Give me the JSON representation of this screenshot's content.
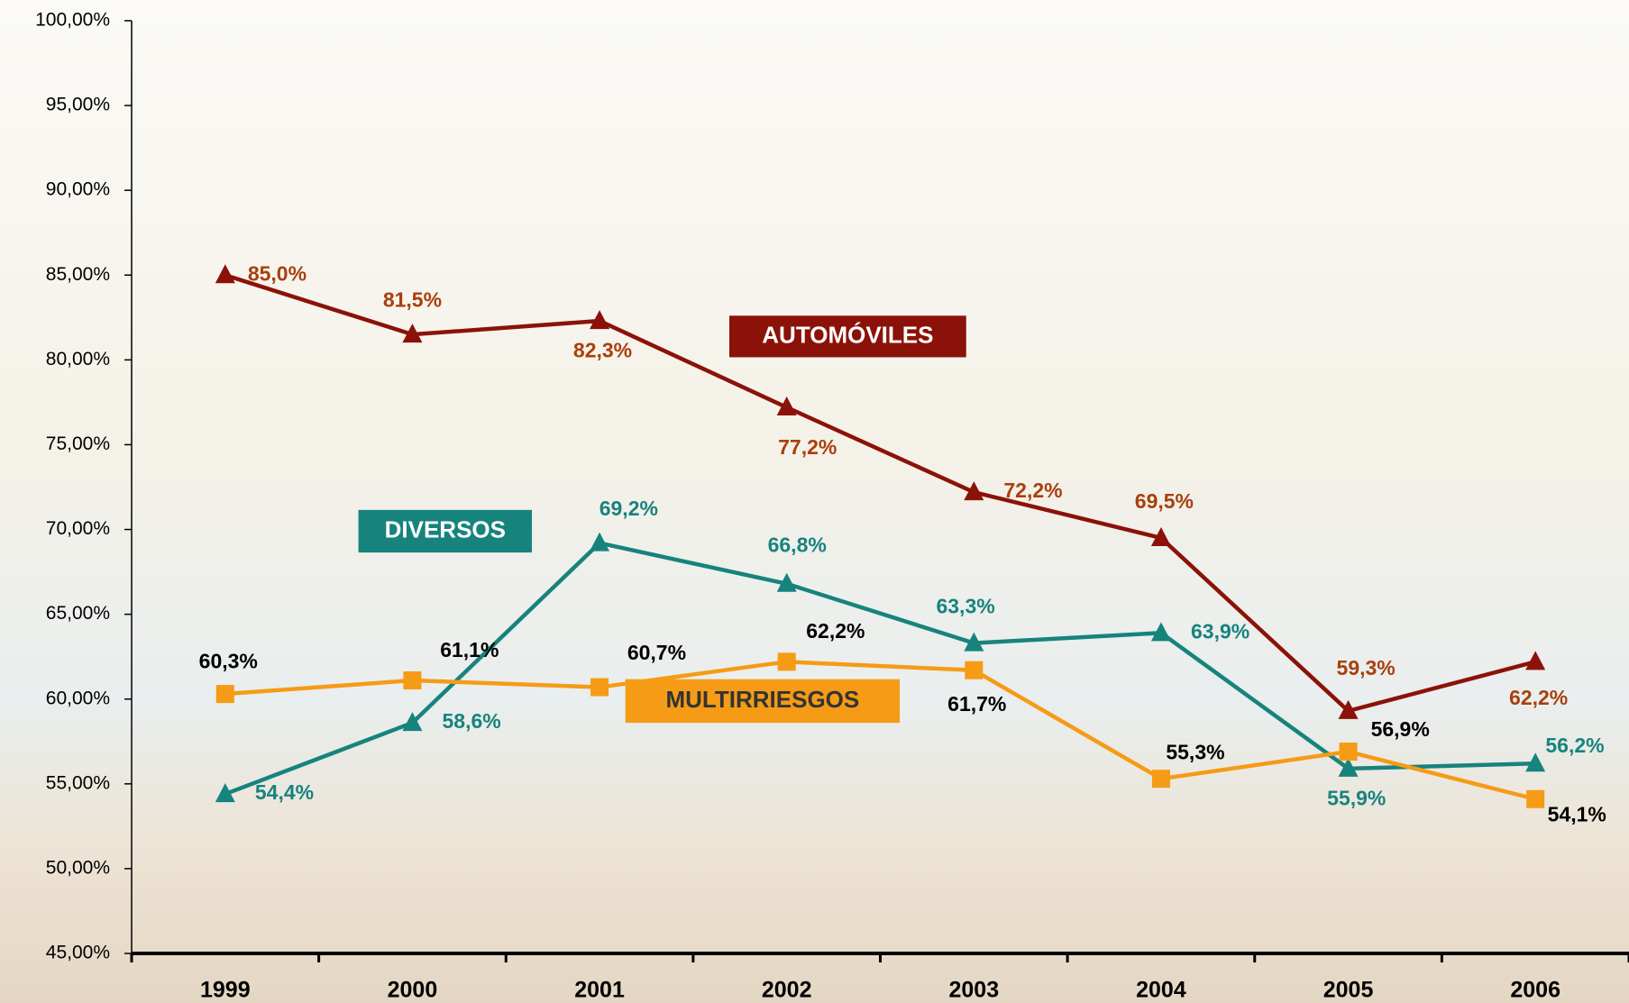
{
  "chart_data": {
    "type": "line",
    "categories": [
      "1999",
      "2000",
      "2001",
      "2002",
      "2003",
      "2004",
      "2005",
      "2006"
    ],
    "ylim": [
      45,
      100
    ],
    "yticks": [
      {
        "value": 45,
        "label": "45,00%"
      },
      {
        "value": 50,
        "label": "50,00%"
      },
      {
        "value": 55,
        "label": "55,00%"
      },
      {
        "value": 60,
        "label": "60,00%"
      },
      {
        "value": 65,
        "label": "65,00%"
      },
      {
        "value": 70,
        "label": "70,00%"
      },
      {
        "value": 75,
        "label": "75,00%"
      },
      {
        "value": 80,
        "label": "80,00%"
      },
      {
        "value": 85,
        "label": "85,00%"
      },
      {
        "value": 90,
        "label": "90,00%"
      },
      {
        "value": 95,
        "label": "95,00%"
      },
      {
        "value": 100,
        "label": "100,00%"
      }
    ],
    "series": [
      {
        "name": "AUTOMÓVILES",
        "color": "#8b1208",
        "label_color": "#a8400c",
        "marker": "triangle",
        "values": [
          85.0,
          81.5,
          82.3,
          77.2,
          72.2,
          69.5,
          59.3,
          62.2
        ],
        "value_labels": [
          "85,0%",
          "81,5%",
          "82,3%",
          "77,2%",
          "72,2%",
          "69,5%",
          "59,3%",
          "62,2%"
        ]
      },
      {
        "name": "DIVERSOS",
        "color": "#17837d",
        "label_color": "#17837d",
        "marker": "triangle",
        "values": [
          54.4,
          58.6,
          69.2,
          66.8,
          63.3,
          63.9,
          55.9,
          56.2
        ],
        "value_labels": [
          "54,4%",
          "58,6%",
          "69,2%",
          "66,8%",
          "63,3%",
          "63,9%",
          "55,9%",
          "56,2%"
        ]
      },
      {
        "name": "MULTIRRIESGOS",
        "color": "#f59b16",
        "label_color": "#000000",
        "marker": "square",
        "values": [
          60.3,
          61.1,
          60.7,
          62.2,
          61.7,
          55.3,
          56.9,
          54.1
        ],
        "value_labels": [
          "60,3%",
          "61,1%",
          "60,7%",
          "62,2%",
          "61,7%",
          "55,3%",
          "56,9%",
          "54,1%"
        ]
      }
    ]
  }
}
